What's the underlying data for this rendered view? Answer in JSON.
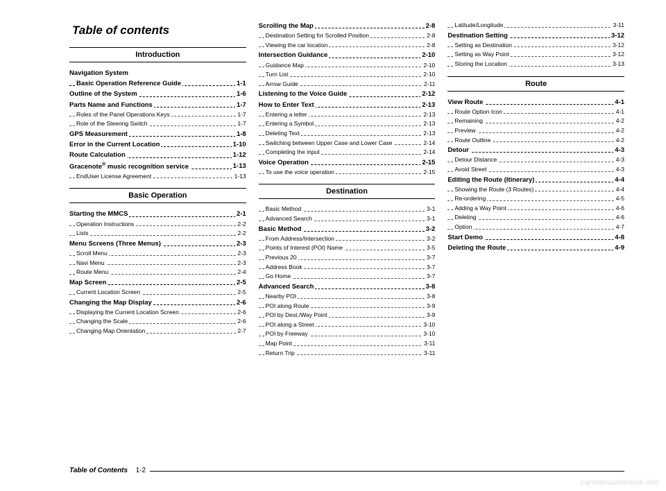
{
  "title": "Table of contents",
  "footer": {
    "label": "Table of Contents",
    "page": "1-2"
  },
  "watermark": "carmanualsonline.info",
  "columns": [
    {
      "items": [
        {
          "kind": "section",
          "text": "Introduction"
        },
        {
          "kind": "bold_nopage",
          "text": "Navigation System"
        },
        {
          "kind": "sub_bold",
          "text": "Basic Operation Reference Guide",
          "page": "1-1"
        },
        {
          "kind": "bold",
          "text": "Outline of the System",
          "page": "1-6"
        },
        {
          "kind": "bold",
          "text": "Parts Name and Functions",
          "page": "1-7"
        },
        {
          "kind": "sub",
          "text": "Roles of the Panel Operations Keys",
          "page": "1-7"
        },
        {
          "kind": "sub",
          "text": "Role of the Steering Switch",
          "page": "1-7"
        },
        {
          "kind": "bold",
          "text": "GPS Measurement",
          "page": "1-8"
        },
        {
          "kind": "bold",
          "text": "Error in the Current Location",
          "page": "1-10"
        },
        {
          "kind": "bold",
          "text": "Route Calculation",
          "page": "1-12"
        },
        {
          "kind": "bold",
          "text": "Gracenote® music recognition service",
          "page": "1-13"
        },
        {
          "kind": "sub",
          "text": "EndUser License Agreement",
          "page": "1-13"
        },
        {
          "kind": "section",
          "text": "Basic Operation"
        },
        {
          "kind": "bold",
          "text": "Starting the MMCS",
          "page": "2-1"
        },
        {
          "kind": "sub",
          "text": "Operation Instructions",
          "page": "2-2"
        },
        {
          "kind": "sub",
          "text": "Lists",
          "page": "2-2"
        },
        {
          "kind": "bold",
          "text": "Menu Screens (Three Menus)",
          "page": "2-3"
        },
        {
          "kind": "sub",
          "text": "Scroll Menu",
          "page": "2-3"
        },
        {
          "kind": "sub",
          "text": "Navi Menu",
          "page": "2-3"
        },
        {
          "kind": "sub",
          "text": "Route Menu",
          "page": "2-4"
        },
        {
          "kind": "bold",
          "text": "Map Screen",
          "page": "2-5"
        },
        {
          "kind": "sub",
          "text": "Current Location Screen",
          "page": "2-5"
        },
        {
          "kind": "bold",
          "text": "Changing the Map Display",
          "page": "2-6"
        },
        {
          "kind": "sub",
          "text": "Displaying the Current Location Screen",
          "page": "2-6"
        },
        {
          "kind": "sub",
          "text": "Changing the Scale",
          "page": "2-6"
        },
        {
          "kind": "sub",
          "text": "Changing Map Orientation",
          "page": "2-7"
        }
      ]
    },
    {
      "items": [
        {
          "kind": "bold",
          "text": "Scrolling the Map",
          "page": "2-8"
        },
        {
          "kind": "sub",
          "text": "Destination Setting for Scrolled Position",
          "page": "2-8"
        },
        {
          "kind": "sub",
          "text": "Viewing the car location",
          "page": "2-8"
        },
        {
          "kind": "bold",
          "text": "Intersection Guidance",
          "page": "2-10"
        },
        {
          "kind": "sub",
          "text": "Guidance Map",
          "page": "2-10"
        },
        {
          "kind": "sub",
          "text": "Turn List",
          "page": "2-10"
        },
        {
          "kind": "sub",
          "text": "Arrow Guide",
          "page": "2-11"
        },
        {
          "kind": "bold",
          "text": "Listening to the Voice Guide",
          "page": "2-12"
        },
        {
          "kind": "bold",
          "text": "How to Enter Text",
          "page": "2-13"
        },
        {
          "kind": "sub",
          "text": "Entering a letter",
          "page": "2-13"
        },
        {
          "kind": "sub",
          "text": "Entering a Symbol",
          "page": "2-13"
        },
        {
          "kind": "sub",
          "text": "Deleting Text",
          "page": "2-13"
        },
        {
          "kind": "sub",
          "text": "Switching between Upper Case and Lower Case",
          "page": "2-14"
        },
        {
          "kind": "sub",
          "text": "Completing the input",
          "page": "2-14"
        },
        {
          "kind": "bold",
          "text": "Voice Operation",
          "page": "2-15"
        },
        {
          "kind": "sub",
          "text": "To use the voice operation",
          "page": "2-15"
        },
        {
          "kind": "section",
          "text": "Destination"
        },
        {
          "kind": "sub",
          "text": "Basic Method",
          "page": "3-1"
        },
        {
          "kind": "sub",
          "text": "Advanced Search",
          "page": "3-1"
        },
        {
          "kind": "bold",
          "text": "Basic Method",
          "page": "3-2"
        },
        {
          "kind": "sub",
          "text": "From Address/Intersection",
          "page": "3-2"
        },
        {
          "kind": "sub",
          "text": "Points of Interest (POI) Name",
          "page": "3-5"
        },
        {
          "kind": "sub",
          "text": "Previous 20",
          "page": "3-7"
        },
        {
          "kind": "sub",
          "text": "Address Book",
          "page": "3-7"
        },
        {
          "kind": "sub",
          "text": "Go Home",
          "page": "3-7"
        },
        {
          "kind": "bold",
          "text": "Advanced Search",
          "page": "3-8"
        },
        {
          "kind": "sub",
          "text": "Nearby POI",
          "page": "3-8"
        },
        {
          "kind": "sub",
          "text": "POI along Route",
          "page": "3-9"
        },
        {
          "kind": "sub",
          "text": "POI by Dest./Way Point",
          "page": "3-9"
        },
        {
          "kind": "sub",
          "text": "POI along a Street",
          "page": "3-10"
        },
        {
          "kind": "sub",
          "text": "POI by Freeway",
          "page": "3-10"
        },
        {
          "kind": "sub",
          "text": "Map Point",
          "page": "3-11"
        },
        {
          "kind": "sub",
          "text": "Return Trip",
          "page": "3-11"
        }
      ]
    },
    {
      "items": [
        {
          "kind": "sub",
          "text": "Latitude/Longitude",
          "page": "3-11"
        },
        {
          "kind": "bold",
          "text": "Destination Setting",
          "page": "3-12"
        },
        {
          "kind": "sub",
          "text": "Setting as Destination",
          "page": "3-12"
        },
        {
          "kind": "sub",
          "text": "Setting as Way Point",
          "page": "3-12"
        },
        {
          "kind": "sub",
          "text": "Storing the Location",
          "page": "3-13"
        },
        {
          "kind": "section",
          "text": "Route"
        },
        {
          "kind": "bold",
          "text": "View Route",
          "page": "4-1"
        },
        {
          "kind": "sub",
          "text": "Route Option Icon",
          "page": "4-1"
        },
        {
          "kind": "sub",
          "text": "Remaining",
          "page": "4-2"
        },
        {
          "kind": "sub",
          "text": "Preview",
          "page": "4-2"
        },
        {
          "kind": "sub",
          "text": "Route Outline",
          "page": "4-2"
        },
        {
          "kind": "bold",
          "text": "Detour",
          "page": "4-3"
        },
        {
          "kind": "sub",
          "text": "Detour Distance",
          "page": "4-3"
        },
        {
          "kind": "sub",
          "text": "Avoid Street",
          "page": "4-3"
        },
        {
          "kind": "bold",
          "text": "Editing the Route (Itinerary)",
          "page": "4-4"
        },
        {
          "kind": "sub",
          "text": "Showing the Route (3 Routes)",
          "page": "4-4"
        },
        {
          "kind": "sub",
          "text": "Re-ordering",
          "page": "4-5"
        },
        {
          "kind": "sub",
          "text": "Adding a Way Point",
          "page": "4-6"
        },
        {
          "kind": "sub",
          "text": "Deleting",
          "page": "4-6"
        },
        {
          "kind": "sub",
          "text": "Option",
          "page": "4-7"
        },
        {
          "kind": "bold",
          "text": "Start Demo",
          "page": "4-8"
        },
        {
          "kind": "bold",
          "text": "Deleting the Route",
          "page": "4-9"
        }
      ]
    }
  ]
}
